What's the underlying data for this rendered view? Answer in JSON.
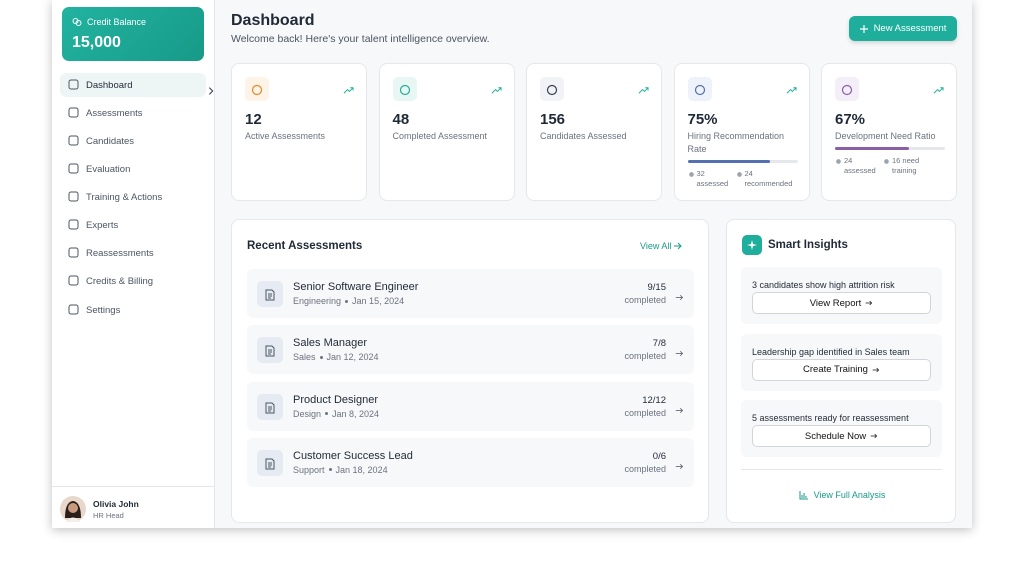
{
  "sidebar": {
    "credit": {
      "label": "Credit Balance",
      "value": "15,000"
    },
    "nav": [
      "Dashboard",
      "Assessments",
      "Candidates",
      "Evaluation",
      "Training & Actions",
      "Experts",
      "Reassessments",
      "Credits & Billing",
      "Settings"
    ],
    "user": {
      "name": "Olivia John",
      "role": "HR Head"
    }
  },
  "header": {
    "title": "Dashboard",
    "subtitle": "Welcome back! Here's your talent intelligence overview.",
    "button": "New Assessment"
  },
  "stats": [
    {
      "value": 12,
      "label": "Active Assessments"
    },
    {
      "value": 48,
      "label": "Completed Assessment"
    },
    {
      "value": 156,
      "label": "Candidates Assessed"
    },
    {
      "value": 75,
      "value_label": "75%",
      "label": "Hiring Recommendation Rate",
      "color": "#5470b0",
      "meta": [
        "32 assessed",
        "24 recommended"
      ]
    },
    {
      "value": 67,
      "value_label": "67%",
      "label": "Development Need Ratio",
      "color": "#8b5ea8",
      "meta": [
        "24 assessed",
        "16 need training"
      ]
    }
  ],
  "recent": {
    "title": "Recent Assessments",
    "link": "View All",
    "items": [
      {
        "title": "Senior Software Engineer",
        "dept": "Engineering",
        "date": "Jan 15, 2024",
        "progress": "9/15",
        "status": "completed"
      },
      {
        "title": "Sales Manager",
        "dept": "Sales",
        "date": "Jan 12, 2024",
        "progress": "7/8",
        "status": "completed"
      },
      {
        "title": "Product Designer",
        "dept": "Design",
        "date": "Jan 8, 2024",
        "progress": "12/12",
        "status": "completed"
      },
      {
        "title": "Customer Success Lead",
        "dept": "Support",
        "date": "Jan 18, 2024",
        "progress": "0/6",
        "status": "completed"
      }
    ]
  },
  "insights": {
    "title": "Smart Insights",
    "items": [
      {
        "text": "3 candidates show high attrition risk",
        "action": "View Report"
      },
      {
        "text": "Leadership gap identified in Sales team",
        "action": "Create Training"
      },
      {
        "text": "5 assessments ready for reassessment",
        "action": "Schedule Now"
      }
    ],
    "link": "View Full Analysis"
  }
}
